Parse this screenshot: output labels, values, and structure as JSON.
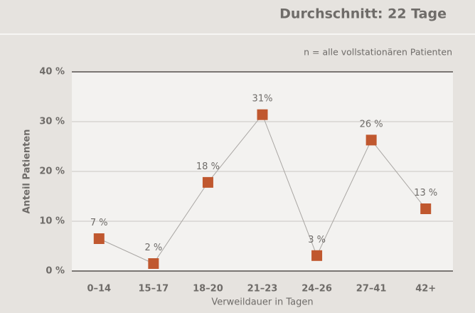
{
  "chart_data": {
    "type": "line",
    "title": "Durchschnitt: 22 Tage",
    "subtitle": "n = alle vollstationären Patienten",
    "y_axis_label": "Anteil Patienten",
    "x_axis_label": "Verweildauer in Tagen",
    "categories": [
      "0–14",
      "15–17",
      "18–20",
      "21–23",
      "24–26",
      "27–41",
      "42+"
    ],
    "values": [
      6.5,
      1.5,
      17.8,
      31.4,
      3.1,
      26.3,
      12.5
    ],
    "value_labels": [
      "7 %",
      "2 %",
      "18 %",
      "31%",
      "3 %",
      "26 %",
      "13 %"
    ],
    "marker_color": "#c0582f",
    "line_color": "#a9a6a3",
    "ylim": [
      0,
      40
    ],
    "yticks": [
      {
        "value": 0,
        "label": "0 %"
      },
      {
        "value": 10,
        "label": "10 %"
      },
      {
        "value": 20,
        "label": "20 %"
      },
      {
        "value": 30,
        "label": "30 %"
      },
      {
        "value": 40,
        "label": "40 %"
      }
    ],
    "grid": true
  }
}
